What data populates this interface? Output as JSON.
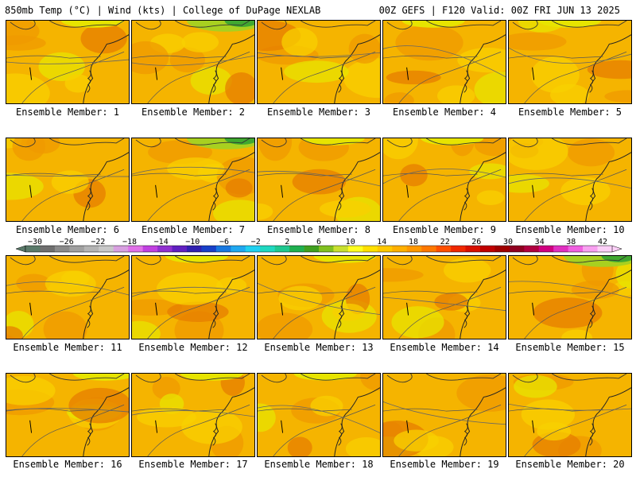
{
  "header": {
    "left": "850mb Temp (°C) | Wind (kts) | College of DuPage NEXLAB",
    "right": "00Z GEFS | F120 Valid: 00Z FRI JUN 13 2025"
  },
  "panels": [
    {
      "label": "Ensemble Member: 1"
    },
    {
      "label": "Ensemble Member: 2"
    },
    {
      "label": "Ensemble Member: 3"
    },
    {
      "label": "Ensemble Member: 4"
    },
    {
      "label": "Ensemble Member: 5"
    },
    {
      "label": "Ensemble Member: 6"
    },
    {
      "label": "Ensemble Member: 7"
    },
    {
      "label": "Ensemble Member: 8"
    },
    {
      "label": "Ensemble Member: 9"
    },
    {
      "label": "Ensemble Member: 10"
    },
    {
      "label": "Ensemble Member: 11"
    },
    {
      "label": "Ensemble Member: 12"
    },
    {
      "label": "Ensemble Member: 13"
    },
    {
      "label": "Ensemble Member: 14"
    },
    {
      "label": "Ensemble Member: 15"
    },
    {
      "label": "Ensemble Member: 16"
    },
    {
      "label": "Ensemble Member: 17"
    },
    {
      "label": "Ensemble Member: 18"
    },
    {
      "label": "Ensemble Member: 19"
    },
    {
      "label": "Ensemble Member: 20"
    }
  ],
  "colorbar": {
    "labels": [
      "−30",
      "−26",
      "−22",
      "−18",
      "−14",
      "−10",
      "−6",
      "−2",
      "2",
      "6",
      "10",
      "14",
      "18",
      "22",
      "26",
      "30",
      "34",
      "38",
      "42"
    ],
    "colors": [
      "#5a7a6a",
      "#6e6e6e",
      "#8a8a8a",
      "#a0a0a0",
      "#b4b4b4",
      "#c8c8c8",
      "#d8a0e0",
      "#e070e8",
      "#c040e0",
      "#9030d0",
      "#6020c0",
      "#3020b0",
      "#1840c8",
      "#1878e0",
      "#20a8f0",
      "#20d0f0",
      "#20d8c0",
      "#20c890",
      "#20b050",
      "#40a020",
      "#80c020",
      "#c8e030",
      "#ffff20",
      "#ffe000",
      "#ffc800",
      "#ffb000",
      "#ff9800",
      "#ff7800",
      "#ff5000",
      "#f02800",
      "#d81000",
      "#c00000",
      "#a00000",
      "#900020",
      "#b00040",
      "#d00080",
      "#e030c0",
      "#f060e0",
      "#f8a0f0",
      "#fcd0f8"
    ],
    "field_colors": {
      "base": "#f5b400",
      "warm": "#ef9a00",
      "warmer": "#e57e00",
      "cool": "#f8d000",
      "cooler": "#e7e400",
      "green": "#a8d020",
      "darkgreen": "#40a830"
    }
  }
}
